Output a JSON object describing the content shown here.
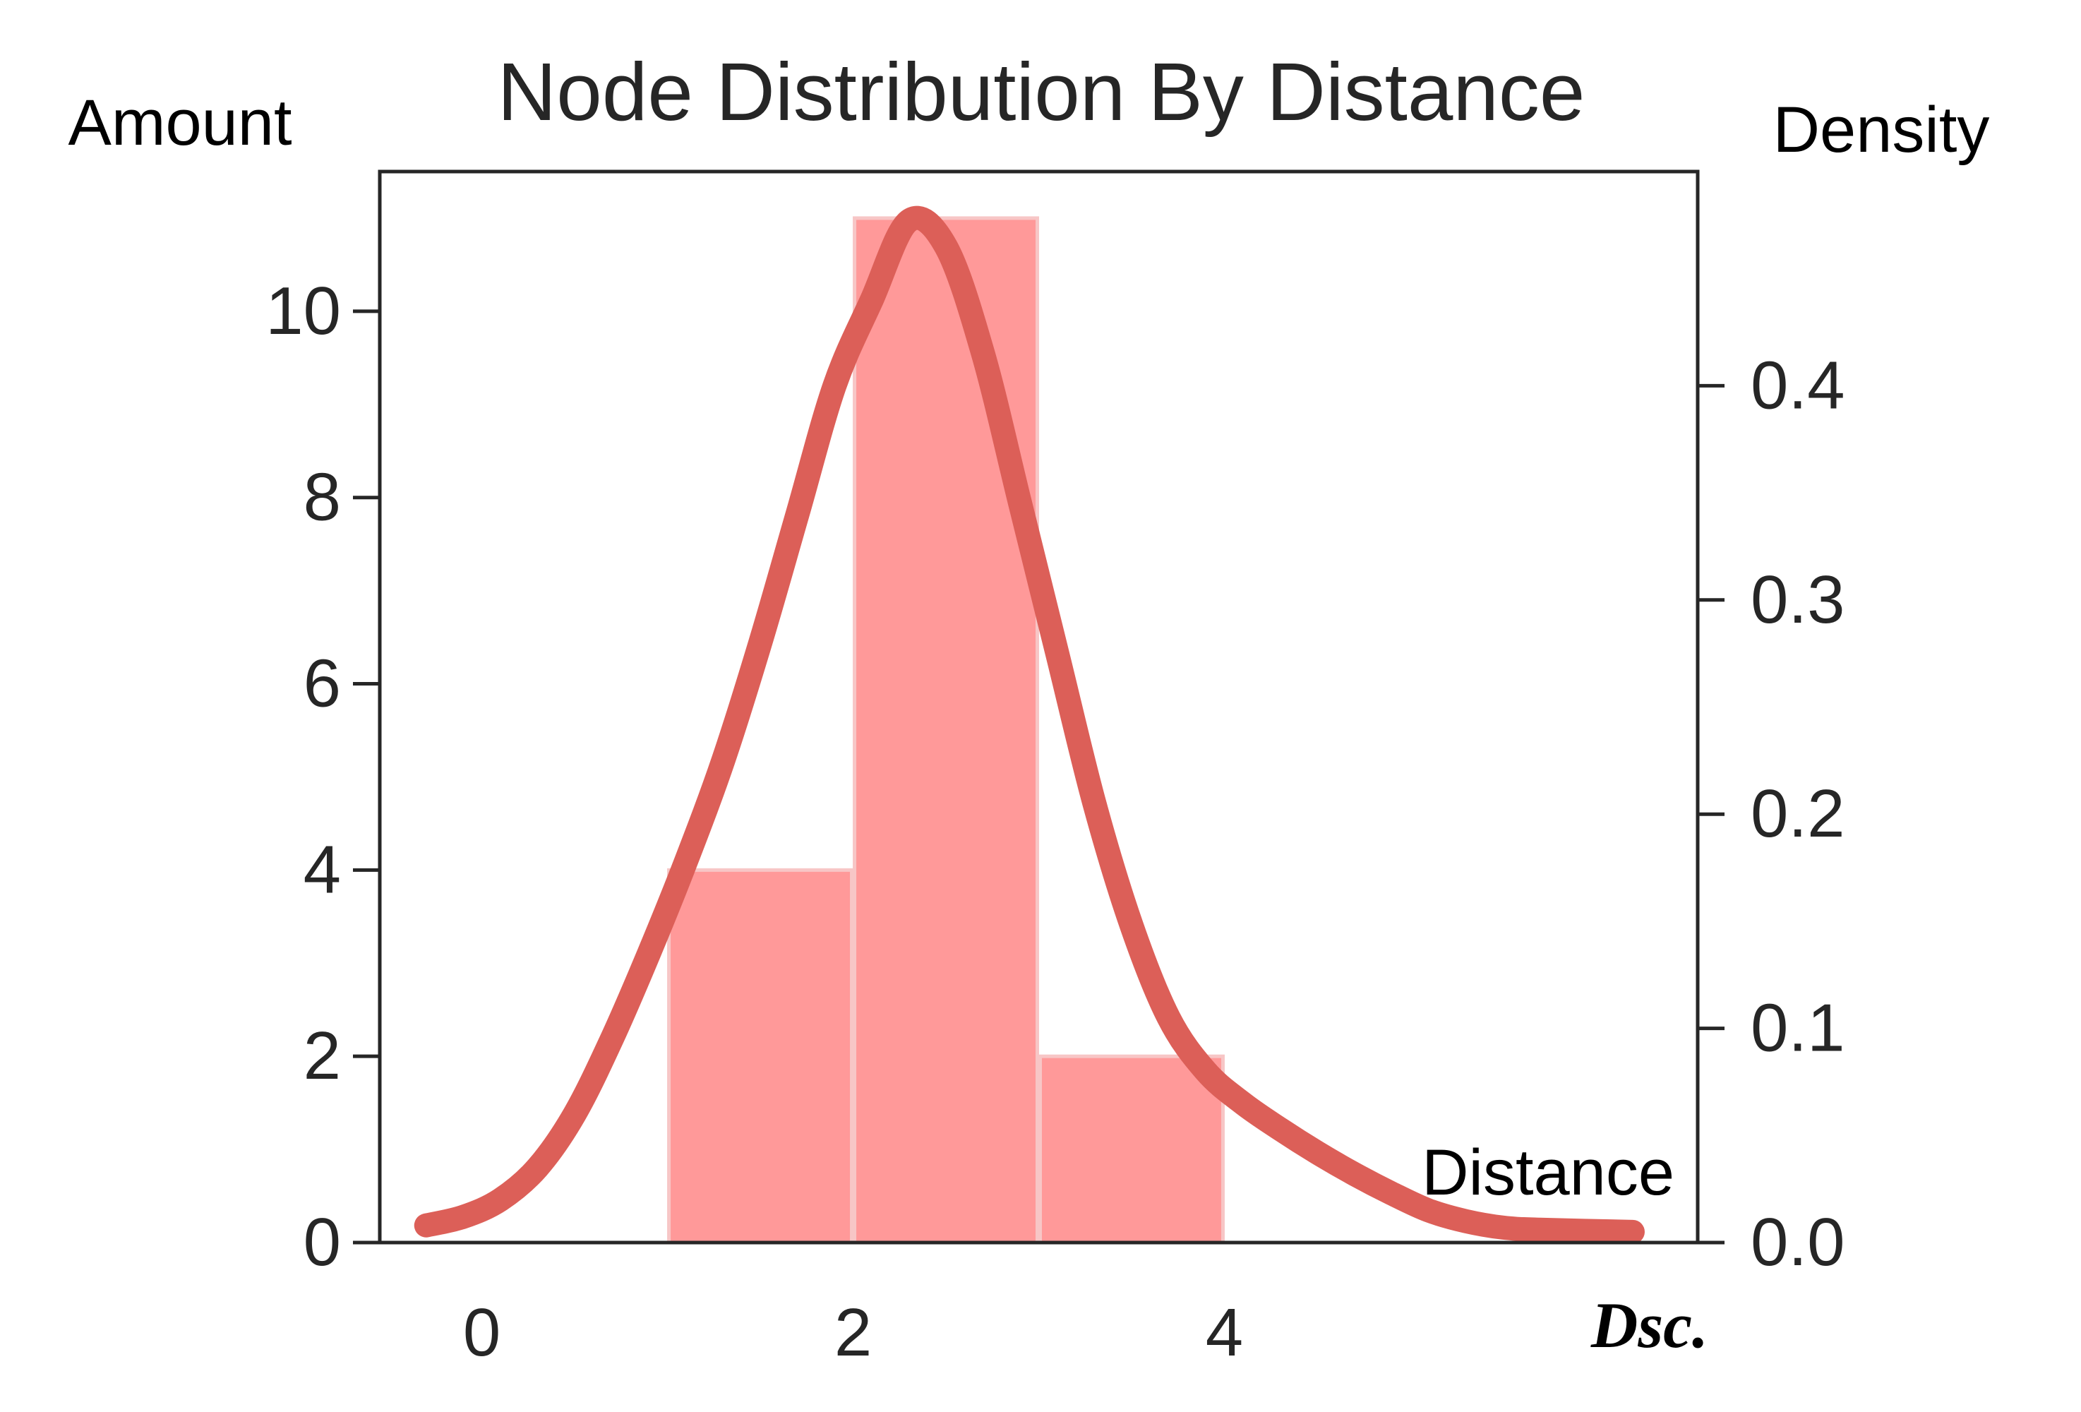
{
  "chart_data": {
    "type": "bar",
    "title": "Node Distribution By Distance",
    "xlabel": "Distance",
    "ylabel": "Amount",
    "y2label": "Density",
    "corner_label": "Dsc.",
    "xlim": [
      -0.55,
      6.55
    ],
    "ylim": [
      0,
      11.5
    ],
    "y2lim": [
      0,
      0.5
    ],
    "xticks": [
      0,
      2,
      4
    ],
    "yticks": [
      0,
      2,
      4,
      6,
      8,
      10
    ],
    "y2ticks": [
      0.0,
      0.1,
      0.2,
      0.3,
      0.4
    ],
    "grid": false,
    "bins": [
      {
        "start": 1,
        "end": 2,
        "value": 4
      },
      {
        "start": 2,
        "end": 3,
        "value": 11
      },
      {
        "start": 3,
        "end": 4,
        "value": 2
      }
    ],
    "density_curve": {
      "x": [
        -0.3,
        -0.1,
        0.1,
        0.3,
        0.5,
        0.7,
        0.9,
        1.1,
        1.3,
        1.5,
        1.7,
        1.9,
        2.1,
        2.3,
        2.5,
        2.7,
        2.9,
        3.1,
        3.3,
        3.5,
        3.7,
        3.9,
        4.1,
        4.3,
        4.5,
        4.7,
        4.9,
        5.1,
        5.3,
        5.5,
        5.7,
        6.2
      ],
      "y": [
        0.008,
        0.012,
        0.02,
        0.035,
        0.06,
        0.095,
        0.135,
        0.178,
        0.225,
        0.28,
        0.34,
        0.4,
        0.44,
        0.477,
        0.465,
        0.415,
        0.345,
        0.275,
        0.205,
        0.148,
        0.105,
        0.08,
        0.065,
        0.053,
        0.042,
        0.032,
        0.023,
        0.015,
        0.01,
        0.007,
        0.006,
        0.005
      ]
    },
    "colors": {
      "bar_fill": "#ff9999",
      "bar_edge": "#f7c6c6",
      "curve": "#dc5f58",
      "axis": "#262626"
    }
  }
}
